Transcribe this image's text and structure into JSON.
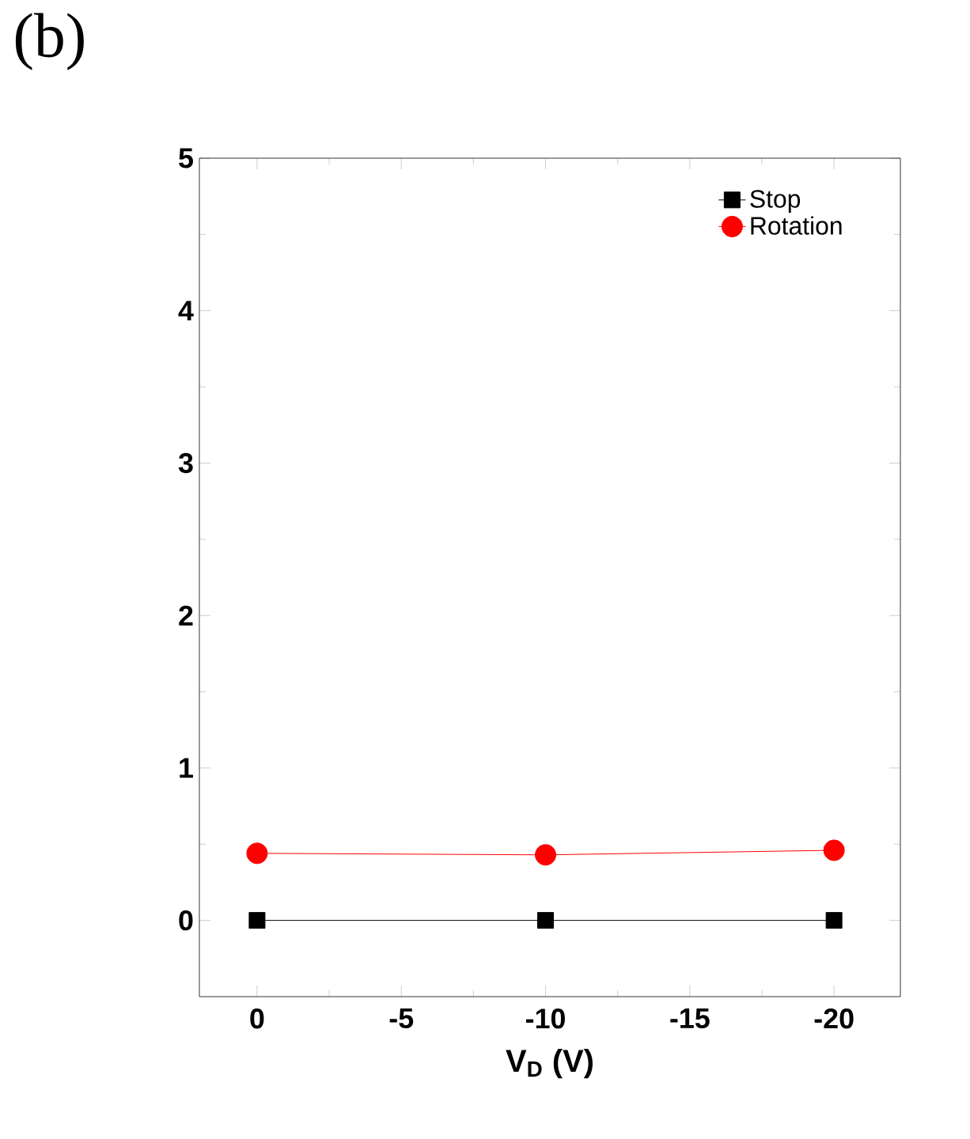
{
  "chart_data": {
    "type": "line",
    "xlabel": "V$_{D}$ (V)",
    "x": [
      0,
      -10,
      -20
    ],
    "series": [
      {
        "name": "Stop",
        "color": "#000000",
        "marker": "square",
        "values": [
          0,
          0,
          0
        ]
      },
      {
        "name": "Rotation",
        "color": "#ff0000",
        "marker": "circle",
        "values": [
          0.44,
          0.43,
          0.46
        ]
      }
    ],
    "xlim": [
      2,
      -22.3
    ],
    "ylim": [
      -0.5,
      5
    ],
    "xticks": [
      0,
      -5,
      -10,
      -15,
      -20
    ],
    "yticks": [
      0,
      1,
      2,
      3,
      4,
      5
    ],
    "legend": "top right",
    "grid": false,
    "annotations": [
      "(b)"
    ]
  }
}
